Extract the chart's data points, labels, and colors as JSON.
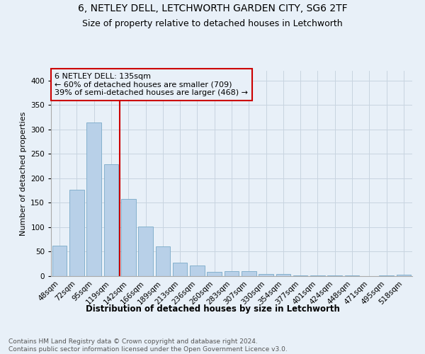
{
  "title": "6, NETLEY DELL, LETCHWORTH GARDEN CITY, SG6 2TF",
  "subtitle": "Size of property relative to detached houses in Letchworth",
  "xlabel": "Distribution of detached houses by size in Letchworth",
  "ylabel": "Number of detached properties",
  "categories": [
    "48sqm",
    "72sqm",
    "95sqm",
    "119sqm",
    "142sqm",
    "166sqm",
    "189sqm",
    "213sqm",
    "236sqm",
    "260sqm",
    "283sqm",
    "307sqm",
    "330sqm",
    "354sqm",
    "377sqm",
    "401sqm",
    "424sqm",
    "448sqm",
    "471sqm",
    "495sqm",
    "518sqm"
  ],
  "values": [
    62,
    176,
    314,
    229,
    158,
    102,
    61,
    27,
    22,
    9,
    10,
    10,
    5,
    4,
    2,
    1,
    1,
    1,
    0,
    1,
    3
  ],
  "bar_color": "#b8d0e8",
  "bar_edge_color": "#7aaac8",
  "grid_color": "#c8d4e0",
  "background_color": "#e8f0f8",
  "vline_x_index": 4,
  "vline_color": "#cc0000",
  "annotation_text": "6 NETLEY DELL: 135sqm\n← 60% of detached houses are smaller (709)\n39% of semi-detached houses are larger (468) →",
  "annotation_box_color": "#cc0000",
  "ylim": [
    0,
    420
  ],
  "yticks": [
    0,
    50,
    100,
    150,
    200,
    250,
    300,
    350,
    400
  ],
  "footnote": "Contains HM Land Registry data © Crown copyright and database right 2024.\nContains public sector information licensed under the Open Government Licence v3.0.",
  "title_fontsize": 10,
  "subtitle_fontsize": 9,
  "xlabel_fontsize": 8.5,
  "ylabel_fontsize": 8,
  "tick_fontsize": 7.5,
  "footnote_fontsize": 6.5,
  "annotation_fontsize": 8
}
